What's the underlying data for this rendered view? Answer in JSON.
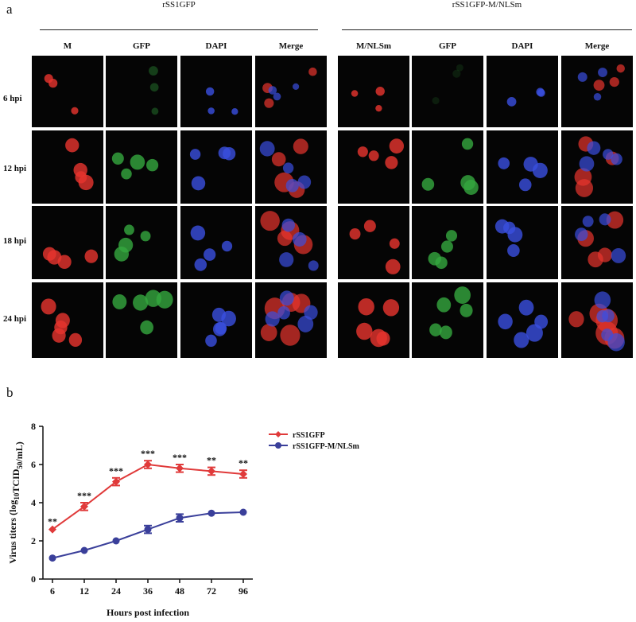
{
  "panel_a": {
    "letter": "a",
    "groups": [
      {
        "title": "rSS1GFP",
        "columns": [
          "M",
          "GFP",
          "DAPI",
          "Merge"
        ]
      },
      {
        "title": "rSS1GFP-M/NLSm",
        "columns": [
          "M/NLSm",
          "GFP",
          "DAPI",
          "Merge"
        ]
      }
    ],
    "rows": [
      "6 hpi",
      "12 hpi",
      "18 hpi",
      "24 hpi"
    ]
  },
  "panel_b": {
    "letter": "b"
  },
  "chart_data": {
    "type": "line",
    "x": [
      "6",
      "12",
      "24",
      "36",
      "48",
      "72",
      "96"
    ],
    "xlabel": "Hours post infection",
    "ylabel": "Virus titers (log10TCID50/mL)",
    "ylabel_parts": {
      "a": "Virus titers (log",
      "sub1": "10",
      "b": "TCID",
      "sub2": "50",
      "c": "/mL)"
    },
    "ylim": [
      0,
      8
    ],
    "yticks": [
      "0",
      "2",
      "4",
      "6",
      "8"
    ],
    "series": [
      {
        "name": "rSS1GFP",
        "color": "#e03a3a",
        "marker": "diamond",
        "values": [
          2.6,
          3.8,
          5.1,
          6.0,
          5.8,
          5.65,
          5.5
        ],
        "errors": [
          0.05,
          0.2,
          0.2,
          0.2,
          0.2,
          0.2,
          0.2
        ]
      },
      {
        "name": "rSS1GFP-M/NLSm",
        "color": "#3a3f9a",
        "marker": "circle",
        "values": [
          1.1,
          1.5,
          2.0,
          2.6,
          3.2,
          3.45,
          3.5
        ],
        "errors": [
          0.05,
          0.05,
          0.05,
          0.2,
          0.2,
          0.05,
          0.05
        ]
      }
    ],
    "significance": [
      "**",
      "***",
      "***",
      "***",
      "***",
      "**",
      "**"
    ],
    "legend_position": "top-right"
  }
}
